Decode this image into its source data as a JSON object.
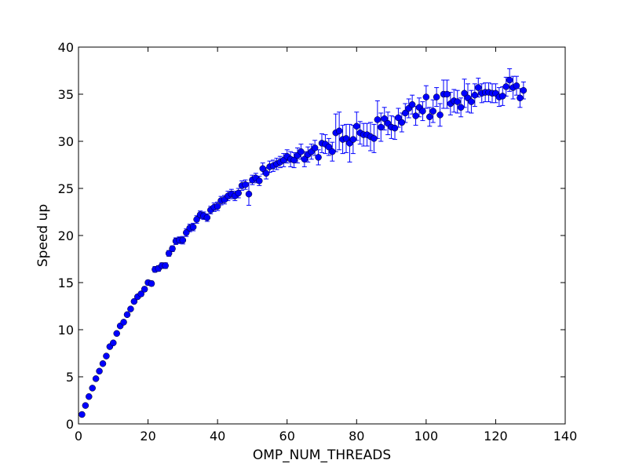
{
  "chart_data": {
    "type": "scatter",
    "title": "",
    "xlabel": "OMP_NUM_THREADS",
    "ylabel": "Speed up",
    "xlim": [
      0,
      140
    ],
    "ylim": [
      0,
      40
    ],
    "xticks": [
      0,
      20,
      40,
      60,
      80,
      100,
      120,
      140
    ],
    "yticks": [
      0,
      5,
      10,
      15,
      20,
      25,
      30,
      35,
      40
    ],
    "grid": false,
    "legend": "none",
    "marker_color": "#0000ff",
    "errorbar_color": "#0000ff",
    "series": [
      {
        "x": [
          1,
          2,
          3,
          4,
          5,
          6,
          7,
          8,
          9,
          10,
          11,
          12,
          13,
          14,
          15,
          16,
          17,
          18,
          19,
          20,
          21,
          22,
          23,
          24,
          25,
          26,
          27,
          28,
          29,
          30,
          31,
          32,
          33,
          34,
          35,
          36,
          37,
          38,
          39,
          40,
          41,
          42,
          43,
          44,
          45,
          46,
          47,
          48,
          49,
          50,
          51,
          52,
          53,
          54,
          55,
          56,
          57,
          58,
          59,
          60,
          61,
          62,
          63,
          64,
          65,
          66,
          67,
          68,
          69,
          70,
          71,
          72,
          73,
          74,
          75,
          76,
          77,
          78,
          79,
          80,
          81,
          82,
          83,
          84,
          85,
          86,
          87,
          88,
          89,
          90,
          91,
          92,
          93,
          94,
          95,
          96,
          97,
          98,
          99,
          100,
          101,
          102,
          103,
          104,
          105,
          106,
          107,
          108,
          109,
          110,
          111,
          112,
          113,
          114,
          115,
          116,
          117,
          118,
          119,
          120,
          121,
          122,
          123,
          124,
          125,
          126,
          127,
          128
        ],
        "y": [
          1.0,
          1.95,
          2.9,
          3.8,
          4.8,
          5.6,
          6.4,
          7.2,
          8.2,
          8.6,
          9.6,
          10.4,
          10.8,
          11.6,
          12.2,
          13.0,
          13.5,
          13.8,
          14.3,
          15.0,
          14.9,
          16.4,
          16.5,
          16.8,
          16.8,
          18.1,
          18.6,
          19.4,
          19.5,
          19.5,
          20.3,
          20.8,
          20.9,
          21.7,
          22.2,
          22.1,
          21.9,
          22.7,
          23.0,
          23.1,
          23.7,
          23.8,
          24.2,
          24.4,
          24.2,
          24.5,
          25.3,
          25.4,
          24.4,
          25.9,
          26.1,
          25.8,
          27.1,
          26.6,
          27.3,
          27.4,
          27.6,
          27.8,
          28.0,
          28.4,
          28.1,
          28.0,
          28.5,
          28.9,
          28.1,
          28.6,
          28.9,
          29.3,
          28.3,
          29.8,
          29.7,
          29.4,
          28.9,
          30.9,
          31.1,
          30.2,
          30.3,
          29.8,
          30.2,
          31.6,
          30.9,
          30.7,
          30.7,
          30.5,
          30.3,
          32.3,
          31.5,
          32.4,
          31.9,
          31.5,
          31.4,
          32.5,
          32.0,
          33.0,
          33.5,
          33.9,
          32.7,
          33.6,
          33.2,
          34.7,
          32.6,
          33.2,
          34.7,
          32.8,
          35.0,
          35.0,
          34.0,
          34.3,
          34.2,
          33.6,
          35.1,
          34.6,
          34.2,
          34.9,
          35.7,
          35.1,
          35.2,
          35.2,
          35.1,
          35.1,
          34.7,
          34.8,
          35.8,
          36.5,
          35.7,
          35.9,
          34.6,
          35.4
        ],
        "error": [
          0.1,
          0.1,
          0.1,
          0.1,
          0.1,
          0.1,
          0.1,
          0.1,
          0.15,
          0.15,
          0.15,
          0.2,
          0.2,
          0.2,
          0.2,
          0.2,
          0.2,
          0.25,
          0.25,
          0.25,
          0.25,
          0.3,
          0.3,
          0.3,
          0.3,
          0.3,
          0.3,
          0.35,
          0.35,
          0.4,
          0.4,
          0.4,
          0.4,
          0.4,
          0.4,
          0.4,
          0.4,
          0.4,
          0.45,
          0.45,
          0.45,
          0.45,
          0.5,
          0.5,
          0.5,
          0.5,
          0.5,
          0.5,
          1.2,
          0.5,
          0.5,
          0.5,
          0.6,
          0.6,
          0.6,
          0.6,
          0.6,
          0.6,
          0.7,
          0.7,
          0.8,
          0.8,
          0.8,
          0.8,
          0.8,
          0.8,
          0.8,
          0.8,
          0.8,
          1.0,
          1.0,
          0.9,
          1.0,
          2.0,
          2.0,
          1.5,
          1.5,
          2.0,
          1.5,
          1.5,
          1.2,
          1.2,
          1.2,
          1.5,
          1.5,
          2.0,
          1.5,
          1.2,
          1.2,
          1.2,
          1.2,
          1.0,
          1.0,
          1.0,
          1.0,
          1.0,
          1.0,
          1.0,
          1.0,
          1.2,
          1.0,
          1.2,
          1.0,
          1.2,
          1.5,
          1.5,
          1.2,
          1.2,
          1.2,
          1.0,
          1.5,
          1.5,
          1.2,
          1.2,
          1.0,
          1.0,
          1.0,
          1.0,
          1.0,
          1.0,
          1.0,
          1.0,
          1.0,
          1.2,
          1.2,
          1.0,
          1.0,
          0.9
        ]
      }
    ]
  }
}
